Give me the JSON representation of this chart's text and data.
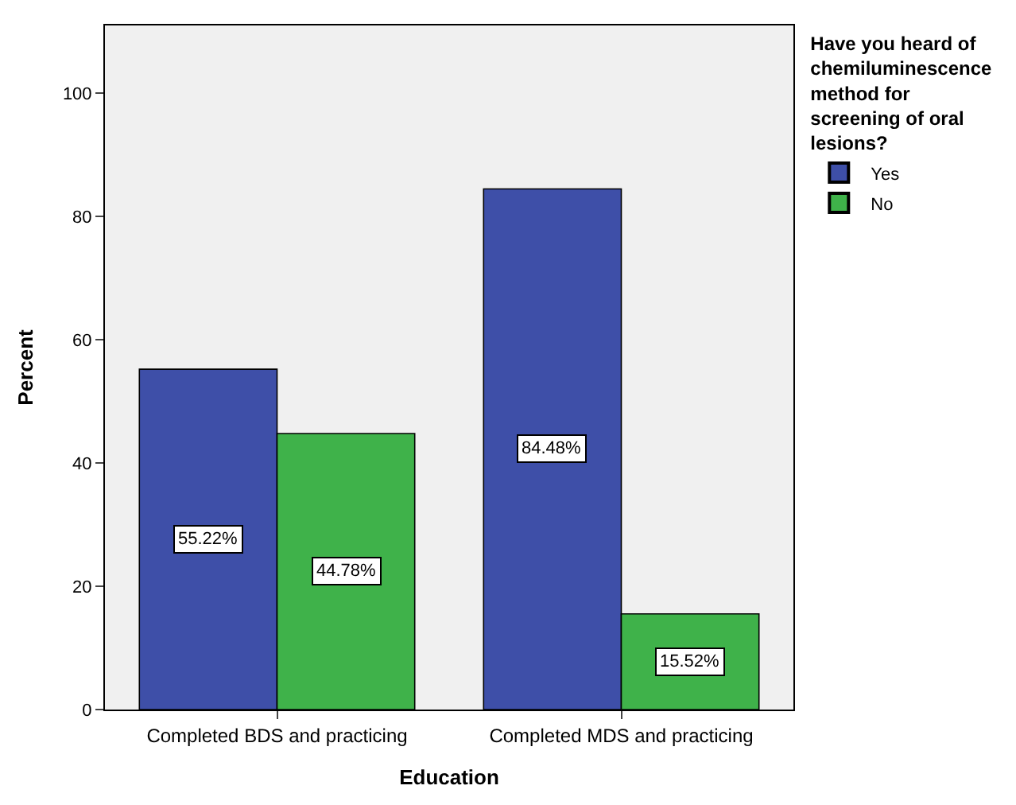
{
  "chart_data": {
    "type": "bar",
    "xlabel": "Education",
    "ylabel": "Percent",
    "legend_title": "Have you heard of chemiluminescence method for screening of oral lesions?",
    "categories": [
      "Completed BDS and practicing",
      "Completed MDS and practicing"
    ],
    "series": [
      {
        "name": "Yes",
        "color": "#3e4fa8",
        "values": [
          55.22,
          84.48
        ],
        "value_labels": [
          "55.22%",
          "84.48%"
        ]
      },
      {
        "name": "No",
        "color": "#3fb24a",
        "values": [
          44.78,
          15.52
        ],
        "value_labels": [
          "44.78%",
          "15.52%"
        ]
      }
    ],
    "ylim": [
      0,
      111
    ],
    "yticks": [
      0,
      20,
      40,
      60,
      80,
      100
    ],
    "grid": false,
    "legend": "top right"
  }
}
